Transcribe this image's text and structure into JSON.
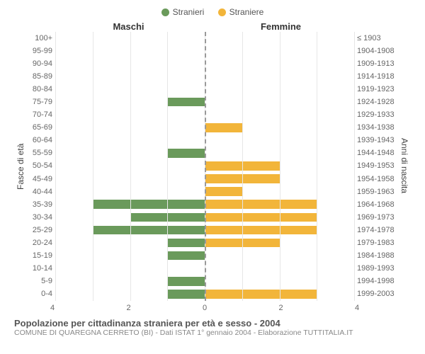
{
  "chart": {
    "type": "population-pyramid",
    "legend": [
      {
        "label": "Stranieri",
        "color": "#6a9a5b"
      },
      {
        "label": "Straniere",
        "color": "#f2b53a"
      }
    ],
    "side_titles": {
      "left": "Maschi",
      "right": "Femmine"
    },
    "y_axis_left_label": "Fasce di età",
    "y_axis_right_label": "Anni di nascita",
    "x_max": 4,
    "x_ticks": [
      4,
      2,
      0,
      2,
      4
    ],
    "background_color": "#ffffff",
    "grid_color": "#e6e6e6",
    "centerline_color": "#999999",
    "bar_height_ratio": 0.7,
    "rows": [
      {
        "age": "100+",
        "birth": "≤ 1903",
        "m": 0,
        "f": 0
      },
      {
        "age": "95-99",
        "birth": "1904-1908",
        "m": 0,
        "f": 0
      },
      {
        "age": "90-94",
        "birth": "1909-1913",
        "m": 0,
        "f": 0
      },
      {
        "age": "85-89",
        "birth": "1914-1918",
        "m": 0,
        "f": 0
      },
      {
        "age": "80-84",
        "birth": "1919-1923",
        "m": 0,
        "f": 0
      },
      {
        "age": "75-79",
        "birth": "1924-1928",
        "m": 1,
        "f": 0
      },
      {
        "age": "70-74",
        "birth": "1929-1933",
        "m": 0,
        "f": 0
      },
      {
        "age": "65-69",
        "birth": "1934-1938",
        "m": 0,
        "f": 1
      },
      {
        "age": "60-64",
        "birth": "1939-1943",
        "m": 0,
        "f": 0
      },
      {
        "age": "55-59",
        "birth": "1944-1948",
        "m": 1,
        "f": 0
      },
      {
        "age": "50-54",
        "birth": "1949-1953",
        "m": 0,
        "f": 2
      },
      {
        "age": "45-49",
        "birth": "1954-1958",
        "m": 0,
        "f": 2
      },
      {
        "age": "40-44",
        "birth": "1959-1963",
        "m": 0,
        "f": 1
      },
      {
        "age": "35-39",
        "birth": "1964-1968",
        "m": 3,
        "f": 3
      },
      {
        "age": "30-34",
        "birth": "1969-1973",
        "m": 2,
        "f": 3
      },
      {
        "age": "25-29",
        "birth": "1974-1978",
        "m": 3,
        "f": 3
      },
      {
        "age": "20-24",
        "birth": "1979-1983",
        "m": 1,
        "f": 2
      },
      {
        "age": "15-19",
        "birth": "1984-1988",
        "m": 1,
        "f": 0
      },
      {
        "age": "10-14",
        "birth": "1989-1993",
        "m": 0,
        "f": 0
      },
      {
        "age": "5-9",
        "birth": "1994-1998",
        "m": 1,
        "f": 0
      },
      {
        "age": "0-4",
        "birth": "1999-2003",
        "m": 1,
        "f": 3
      }
    ],
    "caption_title": "Popolazione per cittadinanza straniera per età e sesso - 2004",
    "caption_sub": "COMUNE DI QUAREGNA CERRETO (BI) - Dati ISTAT 1° gennaio 2004 - Elaborazione TUTTITALIA.IT"
  }
}
